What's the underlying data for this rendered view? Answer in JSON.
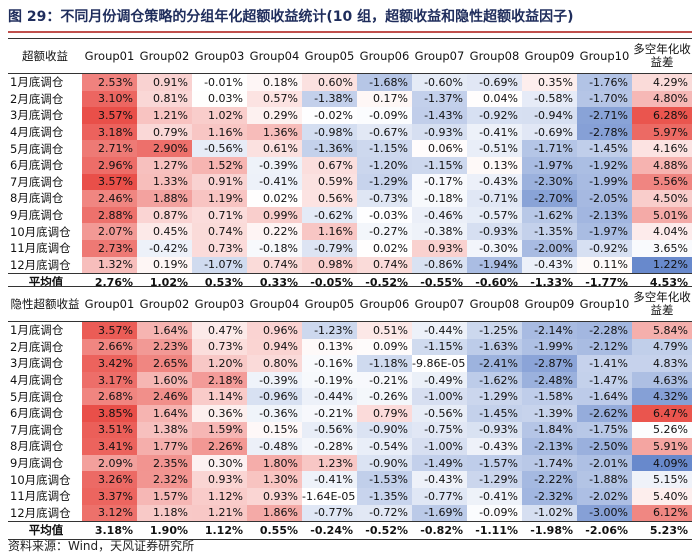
{
  "title": "图 29：不同月份调仓策略的分组年化超额收益统计(10 组，超额收益和隐性超额收益因子)",
  "source": "资料来源：Wind，天风证券研究所",
  "groups": [
    "Group01",
    "Group02",
    "Group03",
    "Group04",
    "Group05",
    "Group06",
    "Group07",
    "Group08",
    "Group09",
    "Group10"
  ],
  "diff_header": "多空年化收益差",
  "panels": [
    {
      "header": "超额收益",
      "rows": [
        {
          "label": "1月底调仓",
          "values": [
            "2.53%",
            "0.91%",
            "-0.01%",
            "0.18%",
            "0.60%",
            "-1.68%",
            "-0.60%",
            "-0.69%",
            "0.35%",
            "-1.76%"
          ],
          "diff": "4.29%"
        },
        {
          "label": "2月底调仓",
          "values": [
            "3.10%",
            "0.81%",
            "0.03%",
            "0.57%",
            "-1.38%",
            "0.17%",
            "-1.37%",
            "0.04%",
            "-0.58%",
            "-1.70%"
          ],
          "diff": "4.80%"
        },
        {
          "label": "3月底调仓",
          "values": [
            "3.57%",
            "1.21%",
            "1.02%",
            "0.29%",
            "-0.02%",
            "-0.09%",
            "-1.43%",
            "-0.92%",
            "-0.94%",
            "-2.71%"
          ],
          "diff": "6.28%"
        },
        {
          "label": "4月底调仓",
          "values": [
            "3.18%",
            "0.79%",
            "1.16%",
            "1.36%",
            "-0.98%",
            "-0.67%",
            "-0.93%",
            "-0.41%",
            "-0.69%",
            "-2.78%"
          ],
          "diff": "5.97%"
        },
        {
          "label": "5月底调仓",
          "values": [
            "2.71%",
            "2.90%",
            "-0.56%",
            "0.61%",
            "-1.36%",
            "-1.15%",
            "0.06%",
            "-0.51%",
            "-1.71%",
            "-1.45%"
          ],
          "diff": "4.16%"
        },
        {
          "label": "6月底调仓",
          "values": [
            "2.96%",
            "1.27%",
            "1.52%",
            "-0.39%",
            "0.67%",
            "-1.20%",
            "-1.15%",
            "0.13%",
            "-1.97%",
            "-1.92%"
          ],
          "diff": "4.88%"
        },
        {
          "label": "7月底调仓",
          "values": [
            "3.57%",
            "1.33%",
            "0.91%",
            "-0.41%",
            "0.59%",
            "-1.29%",
            "-0.17%",
            "-0.43%",
            "-2.30%",
            "-1.99%"
          ],
          "diff": "5.56%"
        },
        {
          "label": "8月底调仓",
          "values": [
            "2.46%",
            "1.88%",
            "1.19%",
            "0.02%",
            "0.56%",
            "-0.73%",
            "-0.18%",
            "-0.71%",
            "-2.70%",
            "-2.05%"
          ],
          "diff": "4.50%"
        },
        {
          "label": "9月底调仓",
          "values": [
            "2.88%",
            "0.87%",
            "0.71%",
            "0.99%",
            "-0.62%",
            "-0.03%",
            "-0.46%",
            "-0.57%",
            "-1.62%",
            "-2.13%"
          ],
          "diff": "5.01%"
        },
        {
          "label": "10月底调仓",
          "values": [
            "2.07%",
            "0.45%",
            "0.74%",
            "0.22%",
            "1.16%",
            "-0.27%",
            "-0.38%",
            "-0.93%",
            "-1.35%",
            "-1.97%"
          ],
          "diff": "4.04%"
        },
        {
          "label": "11月底调仓",
          "values": [
            "2.73%",
            "-0.42%",
            "0.73%",
            "-0.18%",
            "-0.79%",
            "0.02%",
            "0.93%",
            "-0.30%",
            "-2.00%",
            "-0.92%"
          ],
          "diff": "3.65%"
        },
        {
          "label": "12月底调仓",
          "values": [
            "1.32%",
            "0.19%",
            "-1.07%",
            "0.74%",
            "0.98%",
            "0.74%",
            "-0.86%",
            "-1.94%",
            "-0.43%",
            "0.11%"
          ],
          "diff": "1.22%"
        }
      ],
      "avg": {
        "label": "平均值",
        "values": [
          "2.76%",
          "1.02%",
          "0.53%",
          "0.33%",
          "-0.05%",
          "-0.52%",
          "-0.55%",
          "-0.60%",
          "-1.33%",
          "-1.77%"
        ],
        "diff": "4.53%"
      }
    },
    {
      "header": "隐性超额收益",
      "rows": [
        {
          "label": "1月底调仓",
          "values": [
            "3.57%",
            "1.64%",
            "0.47%",
            "0.96%",
            "-1.23%",
            "0.51%",
            "-0.44%",
            "-1.25%",
            "-2.14%",
            "-2.28%"
          ],
          "diff": "5.84%"
        },
        {
          "label": "2月底调仓",
          "values": [
            "2.66%",
            "2.23%",
            "0.73%",
            "0.94%",
            "0.13%",
            "0.09%",
            "-1.15%",
            "-1.63%",
            "-1.99%",
            "-2.12%"
          ],
          "diff": "4.79%"
        },
        {
          "label": "3月底调仓",
          "values": [
            "3.42%",
            "2.65%",
            "1.20%",
            "0.80%",
            "-0.16%",
            "-1.18%",
            "-9.86E-05",
            "-2.41%",
            "-2.87%",
            "-1.41%"
          ],
          "diff": "4.83%"
        },
        {
          "label": "4月底调仓",
          "values": [
            "3.17%",
            "1.60%",
            "2.18%",
            "-0.39%",
            "-0.19%",
            "-0.21%",
            "-0.49%",
            "-1.62%",
            "-2.48%",
            "-1.47%"
          ],
          "diff": "4.63%"
        },
        {
          "label": "5月底调仓",
          "values": [
            "2.68%",
            "2.46%",
            "1.14%",
            "-0.96%",
            "-0.44%",
            "-0.26%",
            "-1.00%",
            "-1.29%",
            "-1.58%",
            "-1.64%"
          ],
          "diff": "4.32%"
        },
        {
          "label": "6月底调仓",
          "values": [
            "3.85%",
            "1.64%",
            "0.36%",
            "-0.36%",
            "-0.21%",
            "0.79%",
            "-0.56%",
            "-1.45%",
            "-1.39%",
            "-2.62%"
          ],
          "diff": "6.47%"
        },
        {
          "label": "7月底调仓",
          "values": [
            "3.51%",
            "1.38%",
            "1.59%",
            "0.15%",
            "-0.56%",
            "-0.90%",
            "-0.75%",
            "-0.93%",
            "-1.84%",
            "-1.75%"
          ],
          "diff": "5.26%"
        },
        {
          "label": "8月底调仓",
          "values": [
            "3.41%",
            "1.77%",
            "2.26%",
            "-0.48%",
            "-0.28%",
            "-0.54%",
            "-1.00%",
            "-0.43%",
            "-2.13%",
            "-2.50%"
          ],
          "diff": "5.91%"
        },
        {
          "label": "9月底调仓",
          "values": [
            "2.09%",
            "2.35%",
            "0.30%",
            "1.80%",
            "1.23%",
            "-0.90%",
            "-1.49%",
            "-1.57%",
            "-1.74%",
            "-2.01%"
          ],
          "diff": "4.09%"
        },
        {
          "label": "10月底调仓",
          "values": [
            "3.26%",
            "2.32%",
            "0.93%",
            "1.30%",
            "-0.41%",
            "-1.53%",
            "-0.43%",
            "-1.29%",
            "-2.22%",
            "-1.88%"
          ],
          "diff": "5.15%"
        },
        {
          "label": "11月底调仓",
          "values": [
            "3.37%",
            "1.57%",
            "1.12%",
            "0.93%",
            "-1.64E-05",
            "-1.35%",
            "-0.77%",
            "-0.41%",
            "-2.32%",
            "-2.02%"
          ],
          "diff": "5.40%"
        },
        {
          "label": "12月底调仓",
          "values": [
            "3.12%",
            "1.18%",
            "1.21%",
            "1.86%",
            "-0.77%",
            "-0.72%",
            "-1.69%",
            "-0.09%",
            "-1.02%",
            "-3.00%"
          ],
          "diff": "6.12%"
        }
      ],
      "avg": {
        "label": "平均值",
        "values": [
          "3.18%",
          "1.90%",
          "1.12%",
          "0.55%",
          "-0.24%",
          "-0.52%",
          "-0.82%",
          "-1.11%",
          "-1.98%",
          "-2.06%"
        ],
        "diff": "5.23%"
      }
    }
  ],
  "colors": {
    "positive": "#e8463f",
    "negative": "#5b7fc8",
    "title": "#1f2d5c",
    "rule": "#c0504d"
  }
}
